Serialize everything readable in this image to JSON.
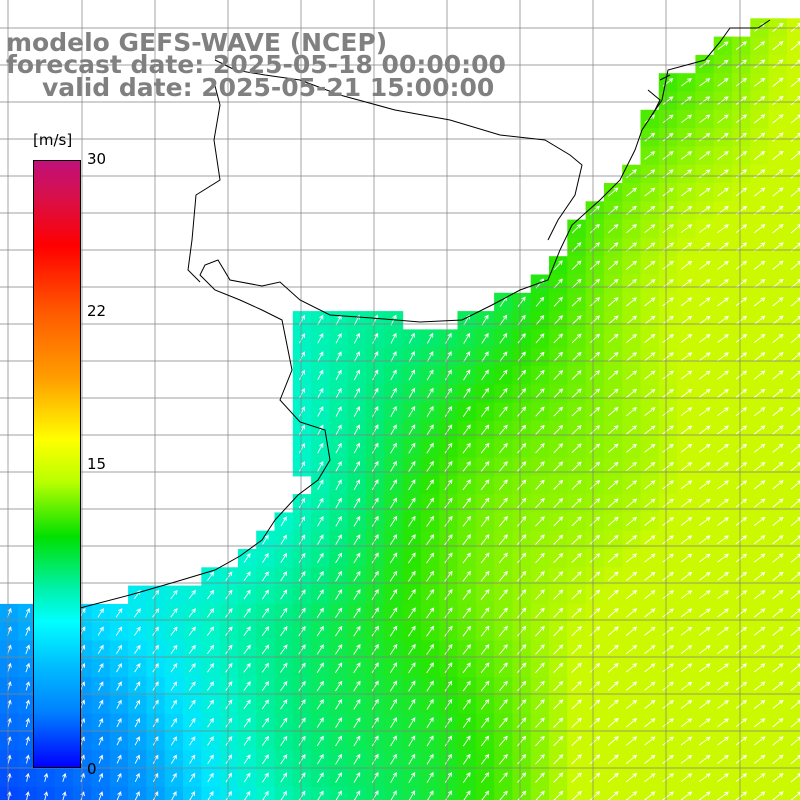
{
  "header": {
    "line1": "modelo GEFS-WAVE (NCEP)",
    "line2": "forecast date: 2025-05-18 00:00:00",
    "line3": "valid date: 2025-05-21 15:00:00"
  },
  "colorbar": {
    "unit": "[m/s]",
    "tick_30": "30",
    "tick_22": "22",
    "tick_15": "15",
    "tick_0": "0",
    "range": [
      0,
      30
    ],
    "colors": [
      "#0000ff",
      "#0080ff",
      "#00c0ff",
      "#00ffff",
      "#00e000",
      "#b8ff00",
      "#ffff00",
      "#ff9f00",
      "#ff0000",
      "#c0107a"
    ]
  },
  "map": {
    "land_color": "#ffffff",
    "grid_color": "#808080",
    "coast_color": "#000000",
    "arrow_color": "#ffffff",
    "field": "wind speed",
    "wind_direction": "southwest to northeast"
  }
}
